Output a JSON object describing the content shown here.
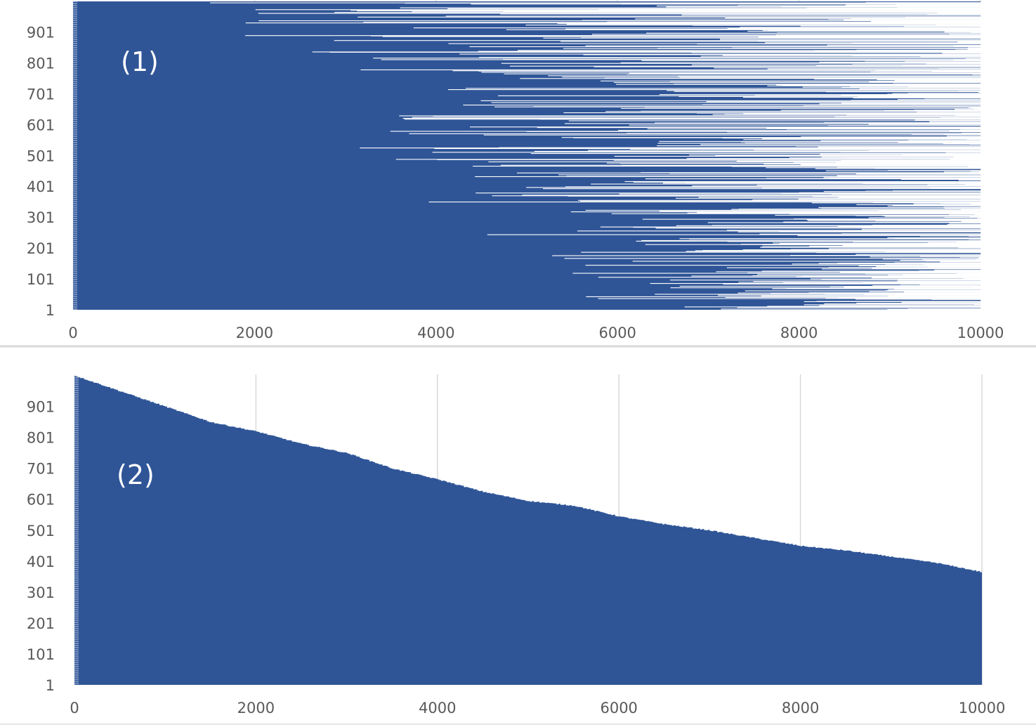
{
  "colors": {
    "bar": "#2f5597",
    "grid": "#d9d9d9",
    "separator": "#d9d9d9",
    "tick_text": "#595959",
    "panel_label": "#ffffff"
  },
  "chart_data": [
    {
      "type": "bar",
      "orientation": "horizontal",
      "panel_label": "(1)",
      "title": "",
      "xlabel": "",
      "ylabel": "",
      "xlim": [
        0,
        10000
      ],
      "x_ticks": [
        "0",
        "2000",
        "4000",
        "6000",
        "8000",
        "10000"
      ],
      "ylim": [
        1,
        1000
      ],
      "y_ticks": [
        "1",
        "101",
        "201",
        "301",
        "401",
        "501",
        "601",
        "701",
        "801",
        "901"
      ],
      "grid": "vertical",
      "values_note_min": [
        1050,
        500,
        2100,
        1500,
        2700,
        3100,
        3500,
        4500,
        5400
      ],
      "sample_values": [
        {
          "category": 1000,
          "value": 10000
        },
        {
          "category": 990,
          "value": 1050
        },
        {
          "category": 950,
          "value": 10000
        },
        {
          "category": 820,
          "value": 3150
        },
        {
          "category": 620,
          "value": 2070
        },
        {
          "category": 530,
          "value": 980
        },
        {
          "category": 440,
          "value": 540
        },
        {
          "category": 330,
          "value": 1420
        },
        {
          "category": 250,
          "value": 1550
        },
        {
          "category": 120,
          "value": 1580
        },
        {
          "category": 40,
          "value": 3500
        },
        {
          "category": 1,
          "value": 5400
        }
      ]
    },
    {
      "type": "bar",
      "orientation": "horizontal",
      "panel_label": "(2)",
      "title": "",
      "xlabel": "",
      "ylabel": "",
      "xlim": [
        0,
        10000
      ],
      "x_ticks": [
        "0",
        "2000",
        "4000",
        "6000",
        "8000",
        "10000"
      ],
      "ylim": [
        1,
        1000
      ],
      "y_ticks": [
        "1",
        "101",
        "201",
        "301",
        "401",
        "501",
        "601",
        "701",
        "801",
        "901"
      ],
      "grid": "vertical",
      "sorted_profile": [
        {
          "value": 0,
          "category": 1000
        },
        {
          "value": 500,
          "category": 950
        },
        {
          "value": 1000,
          "category": 900
        },
        {
          "value": 1500,
          "category": 850
        },
        {
          "value": 2000,
          "category": 820
        },
        {
          "value": 2500,
          "category": 780
        },
        {
          "value": 3000,
          "category": 750
        },
        {
          "value": 3500,
          "category": 700
        },
        {
          "value": 4000,
          "category": 665
        },
        {
          "value": 4500,
          "category": 625
        },
        {
          "value": 5000,
          "category": 595
        },
        {
          "value": 5500,
          "category": 580
        },
        {
          "value": 6000,
          "category": 545
        },
        {
          "value": 6500,
          "category": 520
        },
        {
          "value": 7000,
          "category": 500
        },
        {
          "value": 7500,
          "category": 475
        },
        {
          "value": 8000,
          "category": 450
        },
        {
          "value": 8500,
          "category": 435
        },
        {
          "value": 9000,
          "category": 415
        },
        {
          "value": 9500,
          "category": 395
        },
        {
          "value": 10000,
          "category": 365
        }
      ]
    }
  ]
}
